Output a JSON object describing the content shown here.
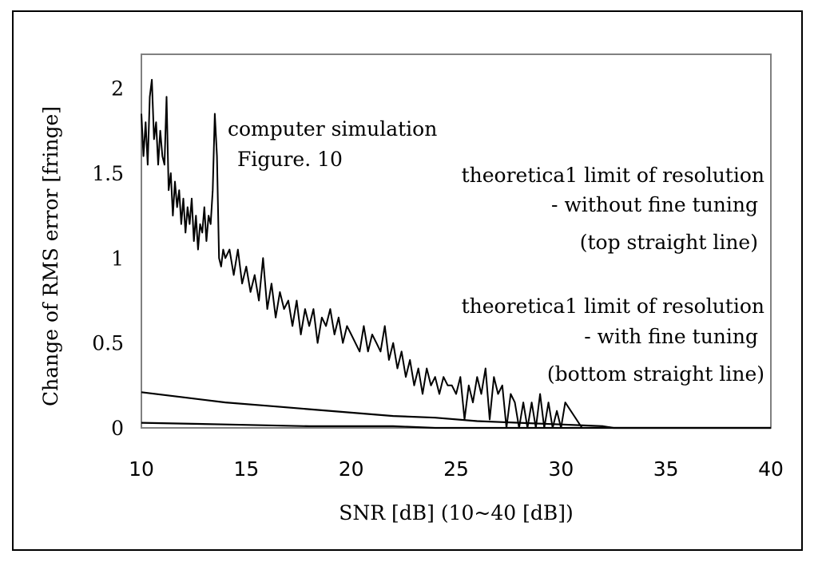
{
  "chart_data": {
    "type": "line",
    "title": "",
    "xlabel": "SNR [dB] (10~40 [dB])",
    "ylabel": "Change of RMS error [fringe]",
    "xlim": [
      10,
      40
    ],
    "ylim": [
      0,
      2.2
    ],
    "x_ticks": [
      "10",
      "15",
      "20",
      "25",
      "30",
      "35",
      "40"
    ],
    "y_ticks": [
      "0",
      "0.5",
      "1",
      "1.5",
      "2"
    ],
    "grid": false,
    "legend": "none",
    "annotations": [
      "computer  simulation",
      "Figure. 10",
      "theoretica1 limit of resolution",
      "- without  fine tuning",
      "(top straight  line)",
      "theoretica1 limit of resolution",
      "- with  fine tuning",
      "(bottom straight line)"
    ],
    "series": [
      {
        "x": [
          10.0,
          10.1,
          10.2,
          10.3,
          10.4,
          10.5,
          10.6,
          10.7,
          10.8,
          10.9,
          11.0,
          11.1,
          11.2,
          11.3,
          11.4,
          11.5,
          11.6,
          11.7,
          11.8,
          11.9,
          12.0,
          12.1,
          12.2,
          12.3,
          12.4,
          12.5,
          12.6,
          12.7,
          12.8,
          12.9,
          13.0,
          13.1,
          13.2,
          13.3,
          13.4,
          13.5,
          13.6,
          13.7,
          13.8,
          13.9,
          14.0,
          14.2,
          14.4,
          14.6,
          14.8,
          15.0,
          15.2,
          15.4,
          15.6,
          15.8,
          16.0,
          16.2,
          16.4,
          16.6,
          16.8,
          17.0,
          17.2,
          17.4,
          17.6,
          17.8,
          18.0,
          18.2,
          18.4,
          18.6,
          18.8,
          19.0,
          19.2,
          19.4,
          19.6,
          19.8,
          20.0,
          20.2,
          20.4,
          20.6,
          20.8,
          21.0,
          21.2,
          21.4,
          21.6,
          21.8,
          22.0,
          22.2,
          22.4,
          22.6,
          22.8,
          23.0,
          23.2,
          23.4,
          23.6,
          23.8,
          24.0,
          24.2,
          24.4,
          24.6,
          24.8,
          25.0,
          25.2,
          25.4,
          25.6,
          25.8,
          26.0,
          26.2,
          26.4,
          26.6,
          26.8,
          27.0,
          27.2,
          27.4,
          27.6,
          27.8,
          28.0,
          28.2,
          28.4,
          28.6,
          28.8,
          29.0,
          29.2,
          29.4,
          29.6,
          29.8,
          30.0,
          30.2,
          31.0,
          33.0,
          35.0,
          37.0,
          40.0
        ],
        "y": [
          1.85,
          1.6,
          1.8,
          1.55,
          1.95,
          2.05,
          1.7,
          1.8,
          1.55,
          1.75,
          1.6,
          1.55,
          1.95,
          1.4,
          1.5,
          1.25,
          1.45,
          1.3,
          1.4,
          1.2,
          1.35,
          1.15,
          1.3,
          1.2,
          1.35,
          1.1,
          1.25,
          1.05,
          1.2,
          1.15,
          1.3,
          1.1,
          1.25,
          1.2,
          1.4,
          1.85,
          1.6,
          1.0,
          0.95,
          1.05,
          1.0,
          1.05,
          0.9,
          1.05,
          0.85,
          0.95,
          0.8,
          0.9,
          0.75,
          1.0,
          0.7,
          0.85,
          0.65,
          0.8,
          0.7,
          0.75,
          0.6,
          0.75,
          0.55,
          0.7,
          0.6,
          0.7,
          0.5,
          0.65,
          0.6,
          0.7,
          0.55,
          0.65,
          0.5,
          0.6,
          0.55,
          0.5,
          0.45,
          0.6,
          0.45,
          0.55,
          0.5,
          0.45,
          0.6,
          0.4,
          0.5,
          0.35,
          0.45,
          0.3,
          0.4,
          0.25,
          0.35,
          0.2,
          0.35,
          0.25,
          0.3,
          0.2,
          0.3,
          0.25,
          0.25,
          0.2,
          0.3,
          0.05,
          0.25,
          0.15,
          0.3,
          0.2,
          0.35,
          0.05,
          0.3,
          0.2,
          0.25,
          0.0,
          0.2,
          0.15,
          0.0,
          0.15,
          0.0,
          0.15,
          0.0,
          0.2,
          0.0,
          0.15,
          0.0,
          0.1,
          0.0,
          0.15,
          0.0,
          0.0,
          0.0,
          0.0,
          0.0
        ]
      },
      {
        "x": [
          10,
          12,
          14,
          16,
          18,
          20,
          22,
          24,
          26,
          28,
          30,
          32,
          32.5,
          35,
          40
        ],
        "y": [
          0.21,
          0.18,
          0.15,
          0.13,
          0.11,
          0.09,
          0.07,
          0.06,
          0.04,
          0.03,
          0.02,
          0.01,
          0.0,
          0.0,
          0.0
        ]
      },
      {
        "x": [
          10,
          14,
          18,
          22,
          24,
          26,
          30,
          35,
          40
        ],
        "y": [
          0.03,
          0.02,
          0.01,
          0.01,
          0.0,
          0.0,
          0.0,
          0.0,
          0.0
        ]
      }
    ]
  }
}
